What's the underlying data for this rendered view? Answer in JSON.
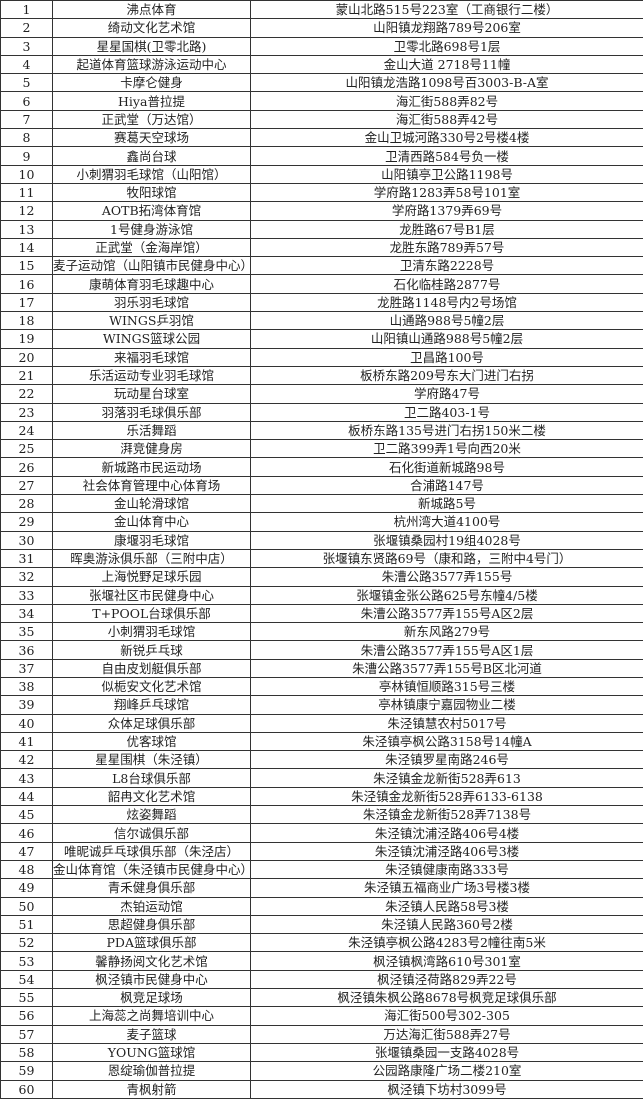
{
  "rows": [
    [
      "1",
      "沸点体育",
      "蒙山北路515号223室（工商银行二楼）"
    ],
    [
      "2",
      "绮动文化艺术馆",
      "山阳镇龙翔路789号206室"
    ],
    [
      "3",
      "星星国棋(卫零北路)",
      "卫零北路698号1层"
    ],
    [
      "4",
      "起道体育篮球游泳运动中心",
      "金山大道 2718号11幢"
    ],
    [
      "5",
      "卡摩仑健身",
      "山阳镇龙浩路1098号百3003-B-A室"
    ],
    [
      "6",
      "Hiya普拉提",
      "海汇街588弄82号"
    ],
    [
      "7",
      "正武堂（万达馆）",
      "海汇街588弄42号"
    ],
    [
      "8",
      "赛葛天空球场",
      "金山卫城河路330号2号楼4楼"
    ],
    [
      "9",
      "鑫尚台球",
      "卫清西路584号负一楼"
    ],
    [
      "10",
      "小刺猬羽毛球馆（山阳馆）",
      "山阳镇亭卫公路1198号"
    ],
    [
      "11",
      "牧阳球馆",
      "学府路1283弄58号101室"
    ],
    [
      "12",
      "AOTB拓湾体育馆",
      "学府路1379弄69号"
    ],
    [
      "13",
      "1号健身游泳馆",
      "龙胜路67号B1层"
    ],
    [
      "14",
      "正武堂（金海岸馆）",
      "龙胜东路789弄57号"
    ],
    [
      "15",
      "麦子运动馆（山阳镇市民健身中心）",
      "卫清东路2228号"
    ],
    [
      "16",
      "康萌体育羽毛球趣中心",
      "石化临桂路2877号"
    ],
    [
      "17",
      "羽乐羽毛球馆",
      "龙胜路1148号内2号场馆"
    ],
    [
      "18",
      "WINGS乒羽馆",
      "山通路988号5幢2层"
    ],
    [
      "19",
      "WINGS篮球公园",
      "山阳镇山通路988号5幢2层"
    ],
    [
      "20",
      "来福羽毛球馆",
      "卫昌路100号"
    ],
    [
      "21",
      "乐活运动专业羽毛球馆",
      "板桥东路209号东大门进门右拐"
    ],
    [
      "22",
      "玩动星台球室",
      "学府路47号"
    ],
    [
      "23",
      "羽落羽毛球俱乐部",
      "卫二路403-1号"
    ],
    [
      "24",
      "乐活舞蹈",
      "板桥东路135号进门右拐150米二楼"
    ],
    [
      "25",
      "湃竞健身房",
      "卫二路399弄1号向西20米"
    ],
    [
      "26",
      "新城路市民运动场",
      "石化街道新城路98号"
    ],
    [
      "27",
      "社会体育管理中心体育场",
      "合浦路147号"
    ],
    [
      "28",
      "金山轮滑球馆",
      "新城路5号"
    ],
    [
      "29",
      "金山体育中心",
      "杭州湾大道4100号"
    ],
    [
      "30",
      "康堰羽毛球馆",
      "张堰镇桑园村19组4028号"
    ],
    [
      "31",
      "晖奥游泳俱乐部（三附中店）",
      "张堰镇东贤路69号（康和路，三附中4号门）"
    ],
    [
      "32",
      "上海悦野足球乐园",
      "朱漕公路3577弄155号"
    ],
    [
      "33",
      "张堰社区市民健身中心",
      "张堰镇金张公路625号东幢4/5楼"
    ],
    [
      "34",
      "T+POOL台球俱乐部",
      "朱漕公路3577弄155号A区2层"
    ],
    [
      "35",
      "小刺猬羽毛球馆",
      "新东风路279号"
    ],
    [
      "36",
      "新锐乒乓球",
      "朱漕公路3577弄155号A区1层"
    ],
    [
      "37",
      "自由皮划艇俱乐部",
      "朱漕公路3577弄155号B区北河道"
    ],
    [
      "38",
      "似栀安文化艺术馆",
      "亭林镇恒顺路315号三楼"
    ],
    [
      "39",
      "翔峰乒乓球馆",
      "亭林镇康宁嘉园物业二楼"
    ],
    [
      "40",
      "众体足球俱乐部",
      "朱泾镇慧农村5017号"
    ],
    [
      "41",
      "优客球馆",
      "朱泾镇亭枫公路3158号14幢A"
    ],
    [
      "42",
      "星星围棋（朱泾镇）",
      "朱泾镇罗星南路246号"
    ],
    [
      "43",
      "L8台球俱乐部",
      "朱泾镇金龙新街528弄613"
    ],
    [
      "44",
      "韶冉文化艺术馆",
      "朱泾镇金龙新街528弄6133-6138"
    ],
    [
      "45",
      "炫姿舞蹈",
      "朱泾镇金龙新街528弄7138号"
    ],
    [
      "46",
      "信尔诚俱乐部",
      "朱泾镇沈浦泾路406号4楼"
    ],
    [
      "47",
      "唯昵诚乒乓球俱乐部（朱泾店）",
      "朱泾镇沈浦泾路406号3楼"
    ],
    [
      "48",
      "金山体育馆（朱泾镇市民健身中心）",
      "朱泾镇健康南路333号"
    ],
    [
      "49",
      "青禾健身俱乐部",
      "朱泾镇五福商业广场3号楼3楼"
    ],
    [
      "50",
      "杰铂运动馆",
      "朱泾镇人民路58号3楼"
    ],
    [
      "51",
      "思超健身俱乐部",
      "朱泾镇人民路360号2楼"
    ],
    [
      "52",
      "PDA篮球俱乐部",
      "朱泾镇亭枫公路4283号2幢往南5米"
    ],
    [
      "53",
      "馨静扬阅文化艺术馆",
      "枫泾镇枫湾路610号301室"
    ],
    [
      "54",
      "枫泾镇市民健身中心",
      "枫泾镇泾荷路829弄22号"
    ],
    [
      "55",
      "枫竞足球场",
      "枫泾镇朱枫公路8678号枫竞足球俱乐部"
    ],
    [
      "56",
      "上海蕊之尚舞培训中心",
      "海汇街500号302-305"
    ],
    [
      "57",
      "麦子篮球",
      "万达海汇街588弄27号"
    ],
    [
      "58",
      "YOUNG篮球馆",
      "张堰镇桑园一支路4028号"
    ],
    [
      "59",
      "恩绽瑜伽普拉提",
      "公园路康隆广场二楼210室"
    ],
    [
      "60",
      "青枫射箭",
      "枫泾镇下坊村3099号"
    ]
  ]
}
